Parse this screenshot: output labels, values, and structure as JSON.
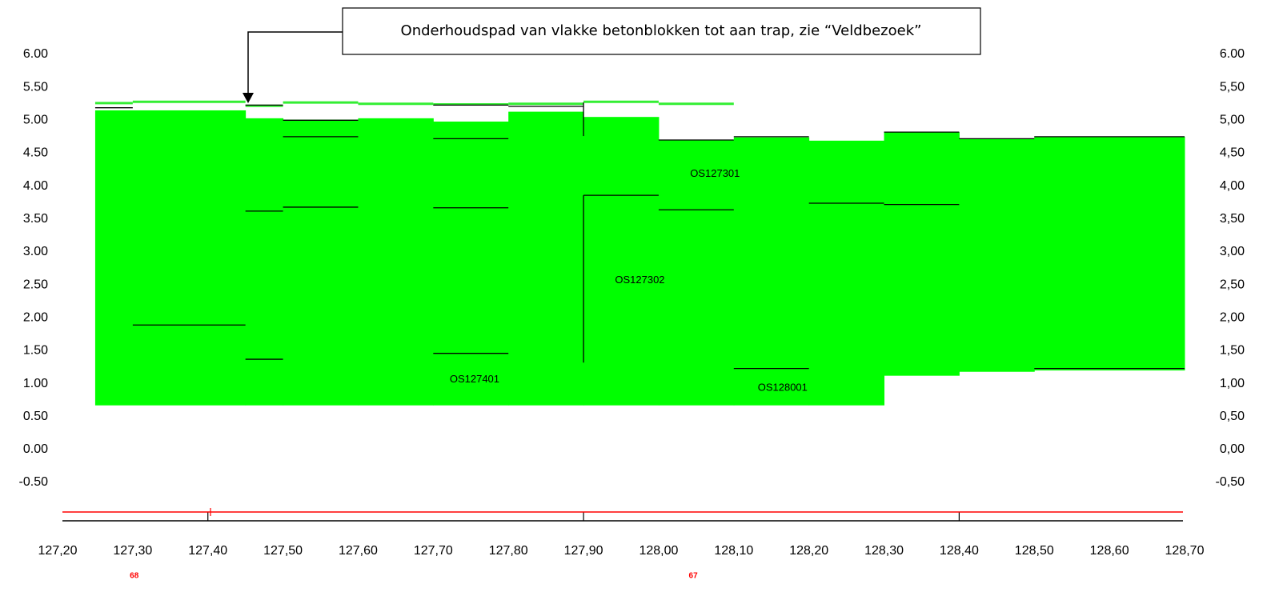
{
  "chart_data": {
    "type": "profile",
    "annotation": "Onderhoudspad van vlakke betonblokken tot aan trap, zie “Veldbezoek”",
    "fill_color": "#00ff00",
    "surface_color": "#33ee33",
    "line_color": "#000000",
    "marker_color": "#ff0000",
    "xlim": [
      127.2,
      128.7
    ],
    "xticks": [
      {
        "value": 127.2,
        "label": "127,20"
      },
      {
        "value": 127.3,
        "label": "127,30"
      },
      {
        "value": 127.4,
        "label": "127,40"
      },
      {
        "value": 127.5,
        "label": "127,50"
      },
      {
        "value": 127.6,
        "label": "127,60"
      },
      {
        "value": 127.7,
        "label": "127,70"
      },
      {
        "value": 127.8,
        "label": "127,80"
      },
      {
        "value": 127.9,
        "label": "127,90"
      },
      {
        "value": 128.0,
        "label": "128,00"
      },
      {
        "value": 128.1,
        "label": "128,10"
      },
      {
        "value": 128.2,
        "label": "128,20"
      },
      {
        "value": 128.3,
        "label": "128,30"
      },
      {
        "value": 128.4,
        "label": "128,40"
      },
      {
        "value": 128.5,
        "label": "128,50"
      },
      {
        "value": 128.6,
        "label": "128,60"
      },
      {
        "value": 128.7,
        "label": "128,70"
      }
    ],
    "ylim": [
      -0.5,
      6
    ],
    "yticks": [
      {
        "value": 6,
        "label": "6.00"
      },
      {
        "value": 5.5,
        "label": "5.50"
      },
      {
        "value": 5,
        "label": "5.00"
      },
      {
        "value": 4.5,
        "label": "4.50"
      },
      {
        "value": 4,
        "label": "4.00"
      },
      {
        "value": 3.5,
        "label": "3.50"
      },
      {
        "value": 3,
        "label": "3.00"
      },
      {
        "value": 2.5,
        "label": "2.50"
      },
      {
        "value": 2,
        "label": "2.00"
      },
      {
        "value": 1.5,
        "label": "1.50"
      },
      {
        "value": 1,
        "label": "1.00"
      },
      {
        "value": 0.5,
        "label": "0.50"
      },
      {
        "value": 0,
        "label": "0.00"
      },
      {
        "value": -0.5,
        "label": "-0.50"
      }
    ],
    "y2ticks": [
      {
        "value": 6,
        "label": "6.00"
      },
      {
        "value": 5.5,
        "label": "5,50"
      },
      {
        "value": 5,
        "label": "5,00"
      },
      {
        "value": 4.5,
        "label": "4,50"
      },
      {
        "value": 4,
        "label": "4,00"
      },
      {
        "value": 3.5,
        "label": "3,50"
      },
      {
        "value": 3,
        "label": "3,00"
      },
      {
        "value": 2.5,
        "label": "2,50"
      },
      {
        "value": 2,
        "label": "2,00"
      },
      {
        "value": 1.5,
        "label": "1,50"
      },
      {
        "value": 1,
        "label": "1,00"
      },
      {
        "value": 0.5,
        "label": "0,50"
      },
      {
        "value": 0,
        "label": "0,00"
      },
      {
        "value": -0.5,
        "label": "-0,50"
      }
    ],
    "blocks": [
      {
        "x": [
          127.25,
          127.45
        ],
        "bottom": 0.67,
        "top": 5.15
      },
      {
        "x": [
          127.45,
          127.5
        ],
        "bottom": 0.67,
        "top": 5.03
      },
      {
        "x": [
          127.5,
          127.6
        ],
        "bottom": 0.67,
        "top": 5.01
      },
      {
        "x": [
          127.6,
          127.7
        ],
        "bottom": 0.67,
        "top": 5.03
      },
      {
        "x": [
          127.7,
          127.8
        ],
        "bottom": 0.67,
        "top": 4.98
      },
      {
        "x": [
          127.8,
          127.9
        ],
        "bottom": 0.67,
        "top": 5.13
      },
      {
        "x": [
          127.9,
          128.0
        ],
        "bottom": 0.67,
        "top": 5.05
      },
      {
        "x": [
          128.0,
          128.1
        ],
        "bottom": 0.67,
        "top": 4.7
      },
      {
        "x": [
          128.1,
          128.2
        ],
        "bottom": 0.67,
        "top": 4.74
      },
      {
        "x": [
          128.2,
          128.3
        ],
        "bottom": 0.67,
        "top": 4.69
      },
      {
        "x": [
          128.3,
          128.4
        ],
        "bottom": 1.12,
        "top": 4.82
      },
      {
        "x": [
          128.4,
          128.5
        ],
        "bottom": 1.18,
        "top": 4.72
      },
      {
        "x": [
          128.5,
          128.7
        ],
        "bottom": 1.2,
        "top": 4.75
      }
    ],
    "surface": [
      {
        "x": [
          127.25,
          127.3
        ],
        "value": 5.26
      },
      {
        "x": [
          127.3,
          127.45
        ],
        "value": 5.28
      },
      {
        "x": [
          127.45,
          127.5
        ],
        "value": 5.22
      },
      {
        "x": [
          127.5,
          127.6
        ],
        "value": 5.27
      },
      {
        "x": [
          127.6,
          127.7
        ],
        "value": 5.25
      },
      {
        "x": [
          127.7,
          127.8
        ],
        "value": 5.24
      },
      {
        "x": [
          127.8,
          127.9
        ],
        "value": 5.25
      },
      {
        "x": [
          127.9,
          128.0
        ],
        "value": 5.28
      },
      {
        "x": [
          128.0,
          128.1
        ],
        "value": 5.25
      }
    ],
    "lines": [
      {
        "x": [
          127.25,
          127.3
        ],
        "value": 5.19
      },
      {
        "x": [
          127.3,
          127.45
        ],
        "value": 1.89
      },
      {
        "x": [
          127.45,
          127.5
        ],
        "value": 5.23
      },
      {
        "x": [
          127.45,
          127.5
        ],
        "value": 3.62
      },
      {
        "x": [
          127.45,
          127.5
        ],
        "value": 1.37
      },
      {
        "x": [
          127.5,
          127.6
        ],
        "value": 5.0
      },
      {
        "x": [
          127.5,
          127.6
        ],
        "value": 4.75
      },
      {
        "x": [
          127.5,
          127.6
        ],
        "value": 3.68
      },
      {
        "x": [
          127.7,
          127.8
        ],
        "value": 5.23
      },
      {
        "x": [
          127.7,
          127.8
        ],
        "value": 4.72
      },
      {
        "x": [
          127.7,
          127.8
        ],
        "value": 3.67
      },
      {
        "x": [
          127.7,
          127.8
        ],
        "value": 1.46
      },
      {
        "x": [
          127.8,
          127.9
        ],
        "value": 5.21
      },
      {
        "x": [
          127.9,
          128.0
        ],
        "value": 3.86
      },
      {
        "x": [
          128.0,
          128.1
        ],
        "value": 4.7
      },
      {
        "x": [
          128.0,
          128.1
        ],
        "value": 3.64
      },
      {
        "x": [
          128.1,
          128.2
        ],
        "value": 4.75
      },
      {
        "x": [
          128.1,
          128.2
        ],
        "value": 1.23
      },
      {
        "x": [
          128.2,
          128.3
        ],
        "value": 3.74
      },
      {
        "x": [
          128.3,
          128.4
        ],
        "value": 4.82
      },
      {
        "x": [
          128.3,
          128.4
        ],
        "value": 3.72
      },
      {
        "x": [
          128.4,
          128.5
        ],
        "value": 4.72
      },
      {
        "x": [
          128.5,
          128.7
        ],
        "value": 4.75
      },
      {
        "x": [
          128.5,
          128.7
        ],
        "value": 1.23
      }
    ],
    "verticals": [
      {
        "x": 127.9,
        "values": [
          1.32,
          3.86
        ]
      },
      {
        "x": 127.9,
        "values": [
          4.76,
          5.27
        ]
      }
    ],
    "labels": [
      {
        "text": "OS127401",
        "x": 127.755,
        "y": 1.06
      },
      {
        "text": "OS127301",
        "x": 128.075,
        "y": 4.18
      },
      {
        "text": "OS127302",
        "x": 127.975,
        "y": 2.57
      },
      {
        "text": "OS128001",
        "x": 128.165,
        "y": 0.93
      }
    ],
    "markers": [
      {
        "label": "68",
        "x": 127.302
      },
      {
        "label": "67",
        "x": 128.046
      }
    ]
  }
}
